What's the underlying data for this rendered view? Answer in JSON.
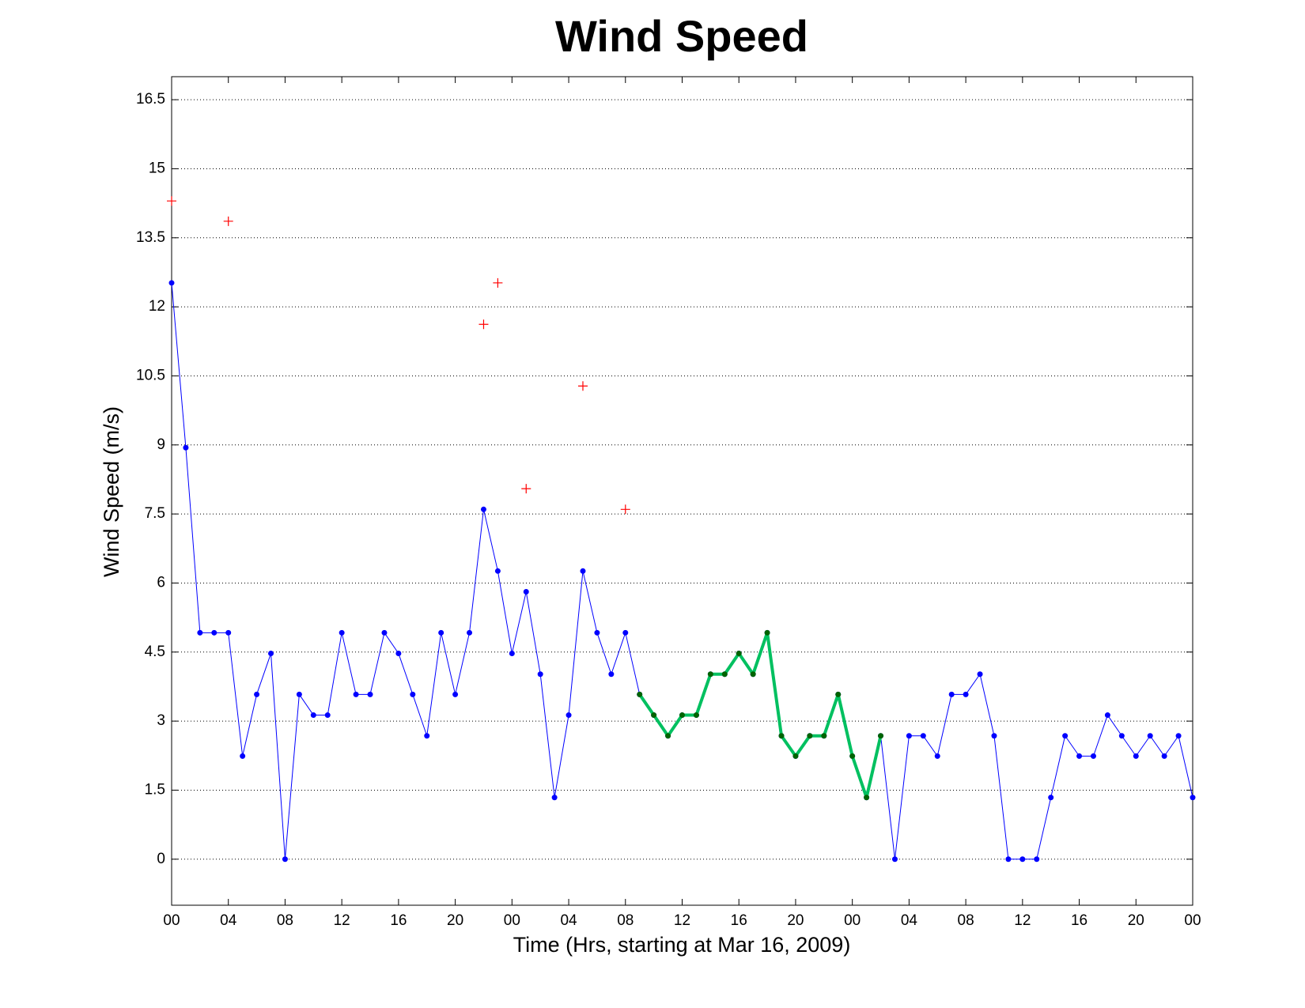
{
  "chart_data": {
    "type": "line",
    "title": "Wind Speed",
    "xlabel": "Time (Hrs, starting at Mar 16, 2009)",
    "ylabel": "Wind Speed (m/s)",
    "xlim": [
      0,
      72
    ],
    "ylim": [
      -1,
      17
    ],
    "xticks": [
      {
        "value": 0,
        "label": "00"
      },
      {
        "value": 4,
        "label": "04"
      },
      {
        "value": 8,
        "label": "08"
      },
      {
        "value": 12,
        "label": "12"
      },
      {
        "value": 16,
        "label": "16"
      },
      {
        "value": 20,
        "label": "20"
      },
      {
        "value": 24,
        "label": "00"
      },
      {
        "value": 28,
        "label": "04"
      },
      {
        "value": 32,
        "label": "08"
      },
      {
        "value": 36,
        "label": "12"
      },
      {
        "value": 40,
        "label": "16"
      },
      {
        "value": 44,
        "label": "20"
      },
      {
        "value": 48,
        "label": "00"
      },
      {
        "value": 52,
        "label": "04"
      },
      {
        "value": 56,
        "label": "08"
      },
      {
        "value": 60,
        "label": "12"
      },
      {
        "value": 64,
        "label": "16"
      },
      {
        "value": 68,
        "label": "20"
      },
      {
        "value": 72,
        "label": "00"
      }
    ],
    "yticks": [
      0,
      1.5,
      3,
      4.5,
      6,
      7.5,
      9,
      10.5,
      12,
      13.5,
      15,
      16.5
    ],
    "grid": "y",
    "series": [
      {
        "color": "#0000ff",
        "marker": "dot",
        "marker_color": "#0000ff",
        "line_width": 1,
        "x": [
          0,
          1,
          2,
          3,
          4,
          5,
          6,
          7,
          8,
          9,
          10,
          11,
          12,
          13,
          14,
          15,
          16,
          17,
          18,
          19,
          20,
          21,
          22,
          23,
          24,
          25,
          26,
          27,
          28,
          29,
          30,
          31,
          32,
          33,
          34,
          35,
          36,
          37,
          38,
          39,
          40,
          41,
          42,
          43,
          44,
          45,
          46,
          47,
          48,
          49,
          50,
          51,
          52,
          53,
          54,
          55,
          56,
          57,
          58,
          59,
          60,
          61,
          62,
          63,
          64,
          65,
          66,
          67,
          68,
          69,
          70,
          71,
          72
        ],
        "values": [
          12.52,
          8.94,
          4.92,
          4.92,
          4.92,
          2.24,
          3.58,
          4.47,
          0,
          3.58,
          3.13,
          3.13,
          4.92,
          3.58,
          3.58,
          4.92,
          4.47,
          3.58,
          2.68,
          4.92,
          3.58,
          4.92,
          7.6,
          6.26,
          4.47,
          5.81,
          4.02,
          1.34,
          3.13,
          6.26,
          4.92,
          4.02,
          4.92,
          3.58,
          3.13,
          2.68,
          3.13,
          3.13,
          4.02,
          4.02,
          4.47,
          4.02,
          4.92,
          2.68,
          2.24,
          2.68,
          2.68,
          3.58,
          2.24,
          1.34,
          2.68,
          0,
          2.68,
          2.68,
          2.24,
          3.58,
          3.58,
          4.02,
          2.68,
          0,
          0,
          0,
          1.34,
          2.68,
          2.24,
          2.24,
          3.13,
          2.68,
          2.24,
          2.68,
          2.24,
          2.68,
          1.34
        ]
      },
      {
        "color": "#00c060",
        "marker": "dot",
        "marker_color": "#006400",
        "line_width": 4,
        "x": [
          33,
          34,
          35,
          36,
          37,
          38,
          39,
          40,
          41,
          42,
          43,
          44,
          45,
          46,
          47,
          48,
          49,
          50
        ],
        "values": [
          3.58,
          3.13,
          2.68,
          3.13,
          3.13,
          4.02,
          4.02,
          4.47,
          4.02,
          4.92,
          2.68,
          2.24,
          2.68,
          2.68,
          3.58,
          2.24,
          1.34,
          2.68
        ]
      },
      {
        "color": "#ff0000",
        "marker": "plus",
        "marker_color": "#ff0000",
        "line_width": 0,
        "x": [
          0,
          4,
          22,
          23,
          25,
          29,
          32
        ],
        "values": [
          14.3,
          13.86,
          11.62,
          12.52,
          8.05,
          10.28,
          7.6
        ]
      }
    ]
  }
}
